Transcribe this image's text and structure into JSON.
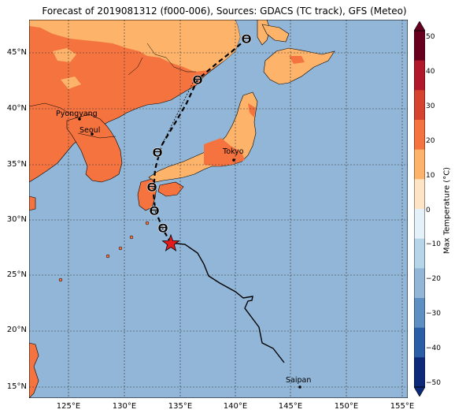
{
  "title": "Forecast of 2019081312 (f000-006), Sources: GDACS (TC track), GFS (Meteo)",
  "map": {
    "lat_ticks": [
      "45°N",
      "40°N",
      "35°N",
      "30°N",
      "25°N",
      "20°N",
      "15°N"
    ],
    "lon_ticks": [
      "125°E",
      "130°E",
      "135°E",
      "140°E",
      "145°E",
      "150°E",
      "155°E"
    ],
    "cities": [
      "Pyongyang",
      "Seoul",
      "Tokyo",
      "Saipan"
    ],
    "colors": {
      "ocean": "#92b6d8",
      "land_warm": "#f4733f",
      "land_mild": "#fdb46a",
      "grid": "#333333",
      "track": "#000000",
      "storm_current": "#e41a1c"
    }
  },
  "colorbar": {
    "title": "Max Temperature (°C)",
    "ticks": [
      "50",
      "40",
      "30",
      "20",
      "10",
      "0",
      "−10",
      "−20",
      "−30",
      "−40",
      "−50"
    ],
    "colors": [
      "#67001f",
      "#b2182b",
      "#d6432e",
      "#f4733f",
      "#fdb46a",
      "#fde4c4",
      "#e5f1f8",
      "#b4d6e8",
      "#92b6d8",
      "#5d8fc2",
      "#2a5fa5",
      "#0d2a7a"
    ]
  },
  "legend_symbols": [
    "storm-symbol-observed",
    "storm-symbol-forecast",
    "current-position-star"
  ]
}
